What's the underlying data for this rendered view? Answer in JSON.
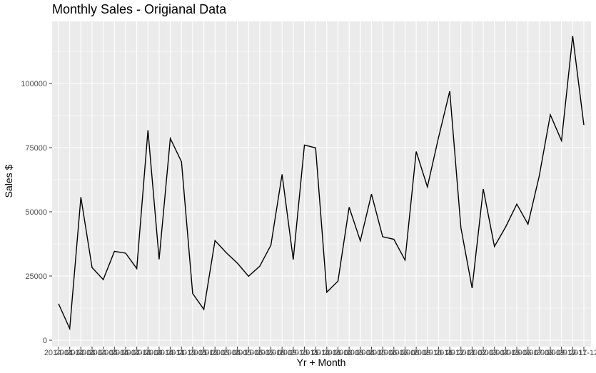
{
  "chart_data": {
    "type": "line",
    "title": "Monthly Sales - Origianal Data",
    "xlabel": "Yr + Month",
    "ylabel": "Sales $",
    "ylim": [
      0,
      125000
    ],
    "y_ticks": [
      0,
      25000,
      50000,
      75000,
      100000
    ],
    "y_tick_labels": [
      "0",
      "25000",
      "50000",
      "75000",
      "100000"
    ],
    "grid": true,
    "categories": [
      "2014-01",
      "2014-02",
      "2014-03",
      "2014-04",
      "2014-05",
      "2014-06",
      "2014-07",
      "2014-08",
      "2014-09",
      "2014-10",
      "2014-11",
      "2014-12",
      "2015-01",
      "2015-02",
      "2015-03",
      "2015-04",
      "2015-05",
      "2015-06",
      "2015-07",
      "2015-08",
      "2015-09",
      "2015-10",
      "2015-11",
      "2015-12",
      "2016-01",
      "2016-02",
      "2016-03",
      "2016-04",
      "2016-05",
      "2016-06",
      "2016-07",
      "2016-08",
      "2016-09",
      "2016-10",
      "2016-11",
      "2016-12",
      "2017-01",
      "2017-02",
      "2017-03",
      "2017-04",
      "2017-05",
      "2017-06",
      "2017-07",
      "2017-08",
      "2017-09",
      "2017-10",
      "2017-11",
      "2017-12"
    ],
    "values": [
      14200,
      4500,
      55700,
      28300,
      23600,
      34600,
      33900,
      27900,
      81800,
      31500,
      78600,
      69500,
      18200,
      12000,
      38800,
      34100,
      30000,
      24900,
      28800,
      37000,
      64600,
      31400,
      76000,
      74900,
      18700,
      23000,
      51800,
      38700,
      56900,
      40300,
      39300,
      31200,
      73500,
      59700,
      79000,
      97000,
      43800,
      20300,
      58900,
      36500,
      44100,
      53000,
      45200,
      63800,
      87800,
      77700,
      118500,
      83800
    ],
    "line_color": "#000000",
    "panel_color": "#ebebeb",
    "grid_color": "#ffffff"
  }
}
